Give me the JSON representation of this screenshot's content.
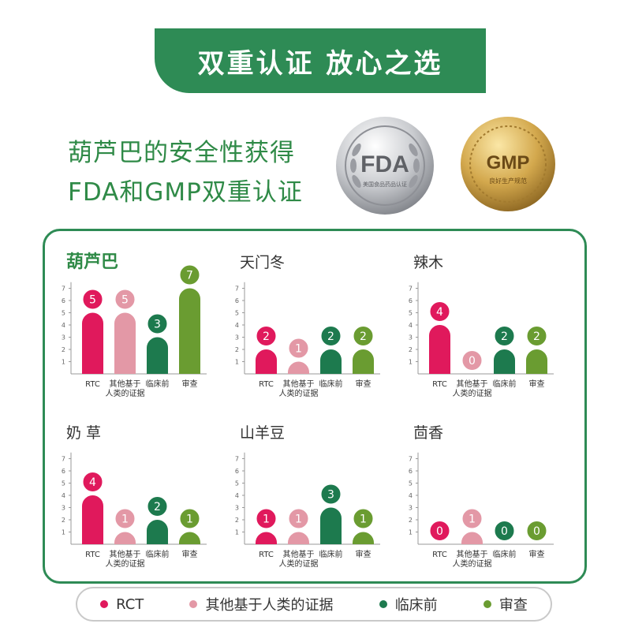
{
  "banner": {
    "title": "双重认证  放心之选"
  },
  "intro": {
    "line1": "葫芦巴的安全性获得",
    "line2": "FDA和GMP双重认证"
  },
  "badges": [
    {
      "main": "FDA",
      "sub": "美国食品药品认证"
    },
    {
      "main": "GMP",
      "sub": "良好生产规范"
    }
  ],
  "colors": {
    "brand_green": "#2e8b55",
    "rct": "#e0195c",
    "human": "#e398a6",
    "preclinical": "#1d7a4e",
    "review": "#6a9c31"
  },
  "chart_data": [
    {
      "type": "bar",
      "title": "葫芦巴",
      "categories": [
        "RTC",
        "其他基于人类的证据",
        "临床前",
        "审查"
      ],
      "values": [
        5,
        5,
        3,
        7
      ],
      "ylim": [
        0,
        7
      ],
      "yticks": [
        1,
        2,
        3,
        4,
        5,
        6,
        7
      ]
    },
    {
      "type": "bar",
      "title": "天门冬",
      "categories": [
        "RTC",
        "其他基于人类的证据",
        "临床前",
        "审查"
      ],
      "values": [
        2,
        1,
        2,
        2
      ],
      "ylim": [
        0,
        7
      ],
      "yticks": [
        1,
        2,
        3,
        4,
        5,
        6,
        7
      ]
    },
    {
      "type": "bar",
      "title": "辣木",
      "categories": [
        "RTC",
        "其他基于人类的证据",
        "临床前",
        "审查"
      ],
      "values": [
        4,
        0,
        2,
        2
      ],
      "ylim": [
        0,
        7
      ],
      "yticks": [
        1,
        2,
        3,
        4,
        5,
        6,
        7
      ]
    },
    {
      "type": "bar",
      "title": "奶 草",
      "categories": [
        "RTC",
        "其他基于人类的证据",
        "临床前",
        "审查"
      ],
      "values": [
        4,
        1,
        2,
        1
      ],
      "ylim": [
        0,
        7
      ],
      "yticks": [
        1,
        2,
        3,
        4,
        5,
        6,
        7
      ]
    },
    {
      "type": "bar",
      "title": "山羊豆",
      "categories": [
        "RTC",
        "其他基于人类的证据",
        "临床前",
        "审查"
      ],
      "values": [
        1,
        1,
        3,
        1
      ],
      "ylim": [
        0,
        7
      ],
      "yticks": [
        1,
        2,
        3,
        4,
        5,
        6,
        7
      ]
    },
    {
      "type": "bar",
      "title": "茴香",
      "categories": [
        "RTC",
        "其他基于人类的证据",
        "临床前",
        "审查"
      ],
      "values": [
        0,
        1,
        0,
        0
      ],
      "ylim": [
        0,
        7
      ],
      "yticks": [
        1,
        2,
        3,
        4,
        5,
        6,
        7
      ]
    }
  ],
  "legend": [
    {
      "label": "RCT",
      "color": "#e0195c"
    },
    {
      "label": "其他基于人类的证据",
      "color": "#e398a6"
    },
    {
      "label": "临床前",
      "color": "#1d7a4e"
    },
    {
      "label": "审查",
      "color": "#6a9c31"
    }
  ]
}
